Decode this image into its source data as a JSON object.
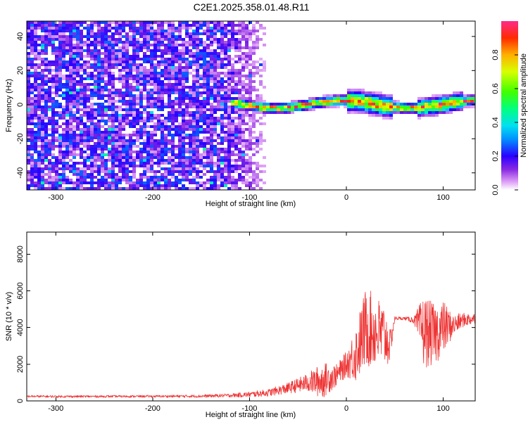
{
  "figure": {
    "title": "C2E1.2025.358.01.48.R11"
  },
  "chart_data": [
    {
      "type": "heatmap",
      "title": "C2E1.2025.358.01.48.R11",
      "xlabel": "Height of straight line (km)",
      "ylabel": "Frequency (Hz)",
      "xlim": [
        -330,
        133
      ],
      "ylim": [
        -50,
        49
      ],
      "xticks": [
        -300,
        -200,
        -100,
        0,
        100
      ],
      "yticks": [
        -40,
        -20,
        0,
        20,
        40
      ],
      "colorbar": {
        "label": "Normalized spectral amplitude",
        "range": [
          0,
          1
        ],
        "ticks": [
          0.0,
          0.2,
          0.4,
          0.6,
          0.8
        ]
      },
      "features": [
        {
          "name": "broadband noise",
          "x_range": [
            -330,
            -75
          ],
          "freq_range": [
            -50,
            49
          ]
        },
        {
          "name": "narrow carrier",
          "x_range": [
            -120,
            133
          ],
          "center_freq_hz": 1,
          "bandwidth_hz": 6
        },
        {
          "name": "broadened segment",
          "x_range": [
            0,
            45
          ],
          "bandwidth_hz": 12
        },
        {
          "name": "broadened segment",
          "x_range": [
            70,
            120
          ],
          "bandwidth_hz": 10
        }
      ]
    },
    {
      "type": "line",
      "xlabel": "Height of straight line (km)",
      "ylabel": "SNR (10 * v/v)",
      "xlim": [
        -330,
        133
      ],
      "ylim": [
        0,
        9200
      ],
      "xticks": [
        -300,
        -200,
        -100,
        0,
        100
      ],
      "yticks": [
        0,
        2000,
        4000,
        6000,
        8000
      ],
      "series": [
        {
          "name": "SNR",
          "color": "#ee3333",
          "x": [
            -330,
            -300,
            -250,
            -200,
            -150,
            -120,
            -100,
            -80,
            -60,
            -40,
            -25,
            -10,
            0,
            10,
            20,
            30,
            40,
            45,
            50,
            60,
            70,
            80,
            90,
            100,
            110,
            120,
            133
          ],
          "y": [
            250,
            240,
            245,
            250,
            260,
            300,
            350,
            450,
            700,
            1000,
            1100,
            1400,
            2000,
            2600,
            4000,
            3800,
            3500,
            3000,
            4500,
            4500,
            4400,
            3800,
            3600,
            4000,
            4100,
            4400,
            4500
          ],
          "noise": [
            60,
            60,
            60,
            60,
            80,
            100,
            150,
            200,
            300,
            500,
            1000,
            600,
            700,
            1600,
            2200,
            2000,
            1800,
            900,
            100,
            80,
            200,
            2000,
            1700,
            1500,
            600,
            400,
            300
          ]
        }
      ]
    }
  ]
}
